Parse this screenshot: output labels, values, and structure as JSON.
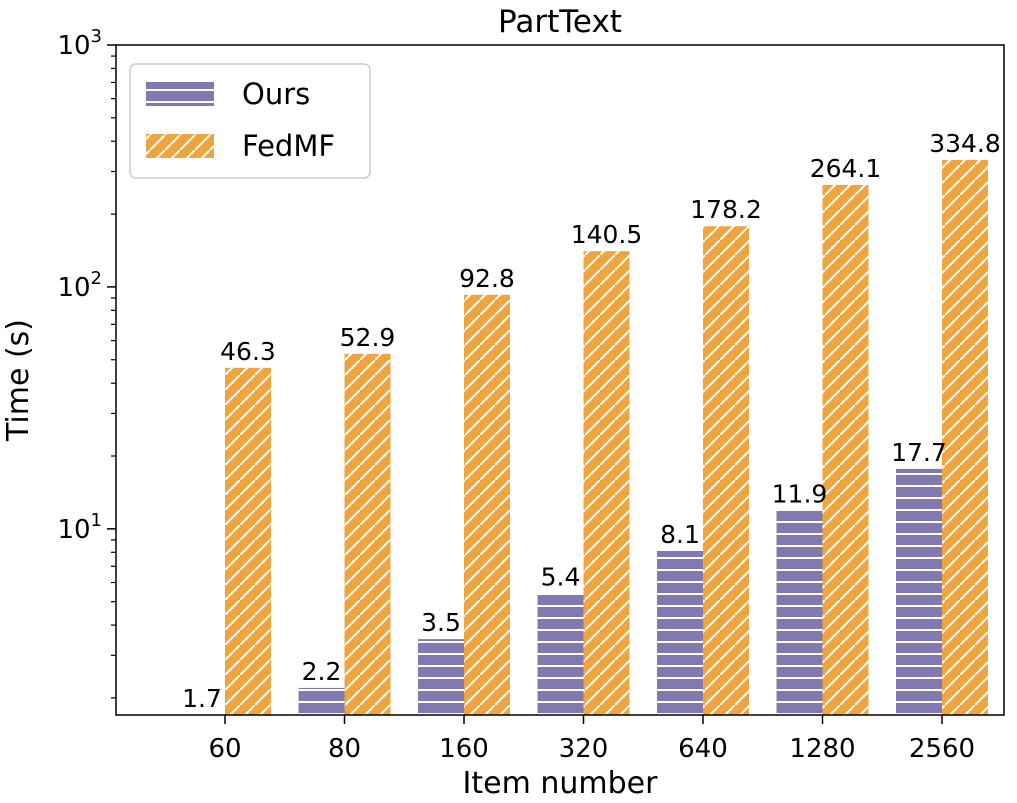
{
  "chart_data": {
    "type": "bar",
    "title": "PartText",
    "xlabel": "Item number",
    "ylabel": "Time (s)",
    "y_scale": "log",
    "ylim": [
      1.7,
      1000
    ],
    "y_ticks": [
      {
        "value": 10,
        "base": "10",
        "exp": "1"
      },
      {
        "value": 100,
        "base": "10",
        "exp": "2"
      },
      {
        "value": 1000,
        "base": "10",
        "exp": "3"
      }
    ],
    "categories": [
      "60",
      "80",
      "160",
      "320",
      "640",
      "1280",
      "2560"
    ],
    "series": [
      {
        "name": "Ours",
        "color": "#8279B0",
        "hatch": "horizontal",
        "values": [
          1.7,
          2.2,
          3.5,
          5.4,
          8.1,
          11.9,
          17.7
        ],
        "labels": [
          "1.7",
          "2.2",
          "3.5",
          "5.4",
          "8.1",
          "11.9",
          "17.7"
        ]
      },
      {
        "name": "FedMF",
        "color": "#F0A43E",
        "hatch": "diagonal",
        "values": [
          46.3,
          52.9,
          92.8,
          140.5,
          178.2,
          264.1,
          334.8
        ],
        "labels": [
          "46.3",
          "52.9",
          "92.8",
          "140.5",
          "178.2",
          "264.1",
          "334.8"
        ]
      }
    ],
    "legend_position": "top-left",
    "grid": false
  }
}
